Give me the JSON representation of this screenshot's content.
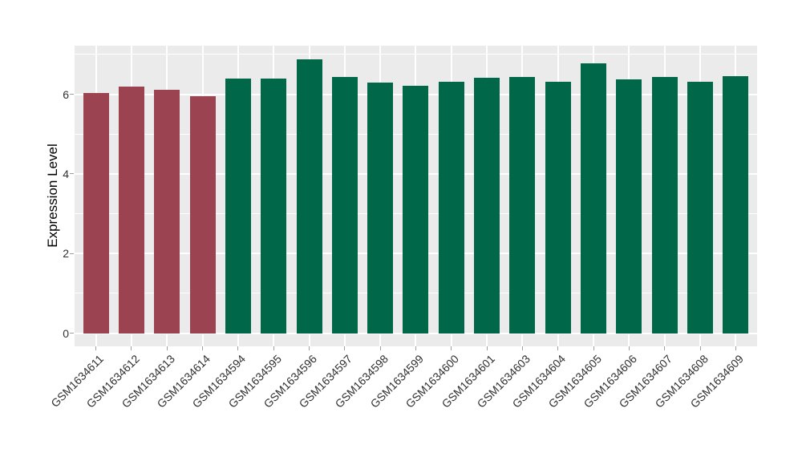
{
  "chart_data": {
    "type": "bar",
    "ylabel": "Expression Level",
    "ylim": [
      -0.33,
      7.22
    ],
    "y_major_ticks": [
      0,
      2,
      4,
      6
    ],
    "y_minor_gridlines": [
      1,
      3,
      5,
      7
    ],
    "grid": true,
    "legend": "none",
    "plot_background": "#EBEBEB",
    "gridline_color": "#FFFFFF",
    "tick_color": "#9E9E9E",
    "axis_text_color": "#303030",
    "group_colors": {
      "group1": "#9C4352",
      "group2": "#006849"
    },
    "categories": [
      "GSM1634611",
      "GSM1634612",
      "GSM1634613",
      "GSM1634614",
      "GSM1634594",
      "GSM1634595",
      "GSM1634596",
      "GSM1634597",
      "GSM1634598",
      "GSM1634599",
      "GSM1634600",
      "GSM1634601",
      "GSM1634603",
      "GSM1634604",
      "GSM1634605",
      "GSM1634606",
      "GSM1634607",
      "GSM1634608",
      "GSM1634609"
    ],
    "values": [
      6.03,
      6.19,
      6.11,
      5.96,
      6.39,
      6.39,
      6.88,
      6.43,
      6.29,
      6.22,
      6.32,
      6.42,
      6.44,
      6.31,
      6.78,
      6.38,
      6.43,
      6.32,
      6.45
    ],
    "bar_colors": [
      "#9C4352",
      "#9C4352",
      "#9C4352",
      "#9C4352",
      "#006849",
      "#006849",
      "#006849",
      "#006849",
      "#006849",
      "#006849",
      "#006849",
      "#006849",
      "#006849",
      "#006849",
      "#006849",
      "#006849",
      "#006849",
      "#006849",
      "#006849"
    ]
  }
}
